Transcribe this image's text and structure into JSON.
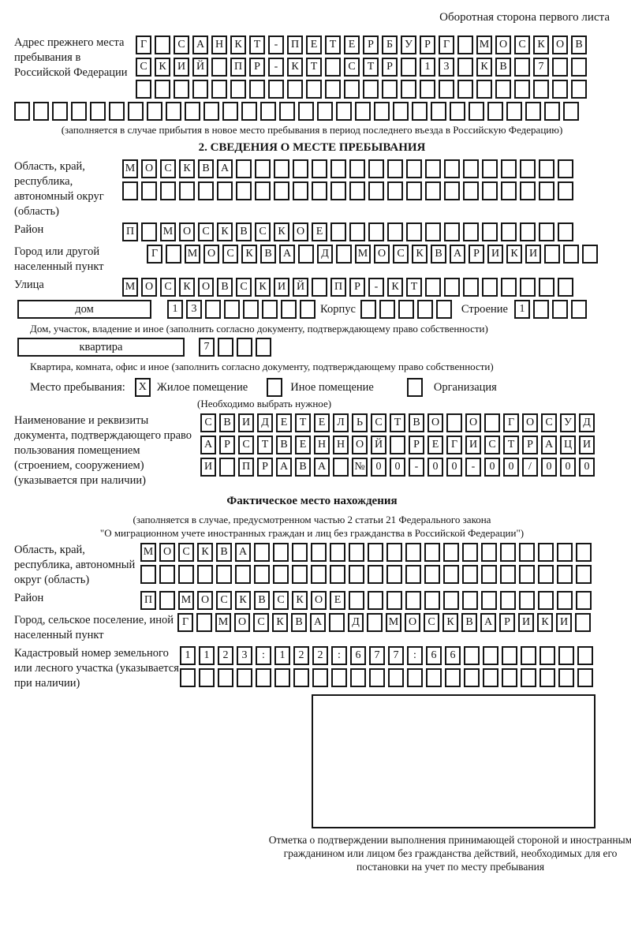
{
  "header": {
    "note": "Оборотная сторона первого листа"
  },
  "colors": {
    "ink": "#151515",
    "paper": "#ffffff"
  },
  "prev_address": {
    "label": "Адрес прежнего места пребывания в Российской Федерации",
    "row1": [
      "Г",
      "",
      "С",
      "А",
      "Н",
      "К",
      "Т",
      "-",
      "П",
      "Е",
      "Т",
      "Е",
      "Р",
      "Б",
      "У",
      "Р",
      "Г",
      "",
      "М",
      "О",
      "С",
      "К",
      "О",
      "В"
    ],
    "row2": [
      "С",
      "К",
      "И",
      "Й",
      "",
      "П",
      "Р",
      "-",
      "К",
      "Т",
      "",
      "С",
      "Т",
      "Р",
      "",
      "1",
      "3",
      "",
      "К",
      "В",
      "",
      "7",
      "",
      ""
    ],
    "row3": 24,
    "row4": 30,
    "note": "(заполняется в случае прибытия в новое место пребывания в период последнего въезда в Российскую Федерацию)"
  },
  "section2": {
    "title": "2. СВЕДЕНИЯ О МЕСТЕ ПРЕБЫВАНИЯ",
    "region": {
      "label": "Область, край, республика, автономный округ (область)",
      "row1": [
        "М",
        "О",
        "С",
        "К",
        "В",
        "А",
        "",
        "",
        "",
        "",
        "",
        "",
        "",
        "",
        "",
        "",
        "",
        "",
        "",
        "",
        "",
        "",
        "",
        ""
      ],
      "row2": 24
    },
    "district": {
      "label": "Район",
      "row": [
        "П",
        "",
        "М",
        "О",
        "С",
        "К",
        "В",
        "С",
        "К",
        "О",
        "Е",
        "",
        "",
        "",
        "",
        "",
        "",
        "",
        "",
        "",
        "",
        "",
        "",
        ""
      ]
    },
    "city": {
      "label": "Город или другой населенный пункт",
      "row": [
        "Г",
        "",
        "М",
        "О",
        "С",
        "К",
        "В",
        "А",
        "",
        "Д",
        "",
        "М",
        "О",
        "С",
        "К",
        "В",
        "А",
        "Р",
        "И",
        "К",
        "И",
        "",
        "",
        ""
      ]
    },
    "street": {
      "label": "Улица",
      "row": [
        "М",
        "О",
        "С",
        "К",
        "О",
        "В",
        "С",
        "К",
        "И",
        "Й",
        "",
        "П",
        "Р",
        "-",
        "К",
        "Т",
        "",
        "",
        "",
        "",
        "",
        "",
        "",
        ""
      ]
    },
    "house": {
      "box_label": "дом",
      "cells": [
        "1",
        "3",
        "",
        "",
        "",
        "",
        "",
        ""
      ],
      "korpus_label": "Корпус",
      "korpus_cells": 5,
      "stroenie_label": "Строение",
      "stroenie_cells": [
        "1",
        "",
        "",
        ""
      ]
    },
    "house_note": "Дом, участок, владение и иное (заполнить согласно документу, подтверждающему право собственности)",
    "apartment": {
      "box_label": "квартира",
      "cells": [
        "7",
        "",
        "",
        ""
      ]
    },
    "apartment_note": "Квартира, комната, офис и иное (заполнить согласно документу, подтверждающему право собственности)",
    "stay_type": {
      "label": "Место пребывания:",
      "options": [
        {
          "label": "Жилое помещение",
          "checked": "X"
        },
        {
          "label": "Иное помещение",
          "checked": ""
        },
        {
          "label": "Организация",
          "checked": ""
        }
      ],
      "note": "(Необходимо выбрать нужное)"
    },
    "document": {
      "label": "Наименование и реквизиты документа, подтверждающего право пользования помещением (строением, сооружением) (указывается при наличии)",
      "row1": [
        "С",
        "В",
        "И",
        "Д",
        "Е",
        "Т",
        "Е",
        "Л",
        "Ь",
        "С",
        "Т",
        "В",
        "О",
        "",
        "О",
        "",
        "Г",
        "О",
        "С",
        "У",
        "Д"
      ],
      "row2": [
        "А",
        "Р",
        "С",
        "Т",
        "В",
        "Е",
        "Н",
        "Н",
        "О",
        "Й",
        "",
        "Р",
        "Е",
        "Г",
        "И",
        "С",
        "Т",
        "Р",
        "А",
        "Ц",
        "И"
      ],
      "row3": [
        "И",
        "",
        "П",
        "Р",
        "А",
        "В",
        "А",
        "",
        "№",
        "0",
        "0",
        "-",
        "0",
        "0",
        "-",
        "0",
        "0",
        "/",
        "0",
        "0",
        "0"
      ]
    }
  },
  "actual_location": {
    "title": "Фактическое место нахождения",
    "note1": "(заполняется в случае, предусмотренном частью 2 статьи 21 Федерального закона",
    "note2": "\"О миграционном учете иностранных граждан и лиц без гражданства в Российской Федерации\")",
    "region": {
      "label": "Область, край, республика, автономный округ (область)",
      "row1": [
        "М",
        "О",
        "С",
        "К",
        "В",
        "А",
        "",
        "",
        "",
        "",
        "",
        "",
        "",
        "",
        "",
        "",
        "",
        "",
        "",
        "",
        "",
        "",
        "",
        ""
      ],
      "row2": 24
    },
    "district": {
      "label": "Район",
      "row": [
        "П",
        "",
        "М",
        "О",
        "С",
        "К",
        "В",
        "С",
        "К",
        "О",
        "Е",
        "",
        "",
        "",
        "",
        "",
        "",
        "",
        "",
        "",
        "",
        "",
        "",
        ""
      ]
    },
    "city": {
      "label": "Город, сельское поселение, иной населенный пункт",
      "row": [
        "Г",
        "",
        "М",
        "О",
        "С",
        "К",
        "В",
        "А",
        "",
        "Д",
        "",
        "М",
        "О",
        "С",
        "К",
        "В",
        "А",
        "Р",
        "И",
        "К",
        "И",
        ""
      ]
    },
    "cadastral": {
      "label": "Кадастровый номер земельного или лесного участка (указывается при наличии)",
      "row1": [
        "1",
        "1",
        "2",
        "3",
        ":",
        "1",
        "2",
        "2",
        ":",
        "6",
        "7",
        "7",
        ":",
        "6",
        "6",
        "",
        "",
        "",
        "",
        "",
        "",
        ""
      ],
      "row2": 22
    },
    "stamp_note": "Отметка о подтверждении выполнения принимающей стороной и иностранным гражданином или лицом без гражданства действий, необходимых для его постановки на учет по месту пребывания"
  }
}
